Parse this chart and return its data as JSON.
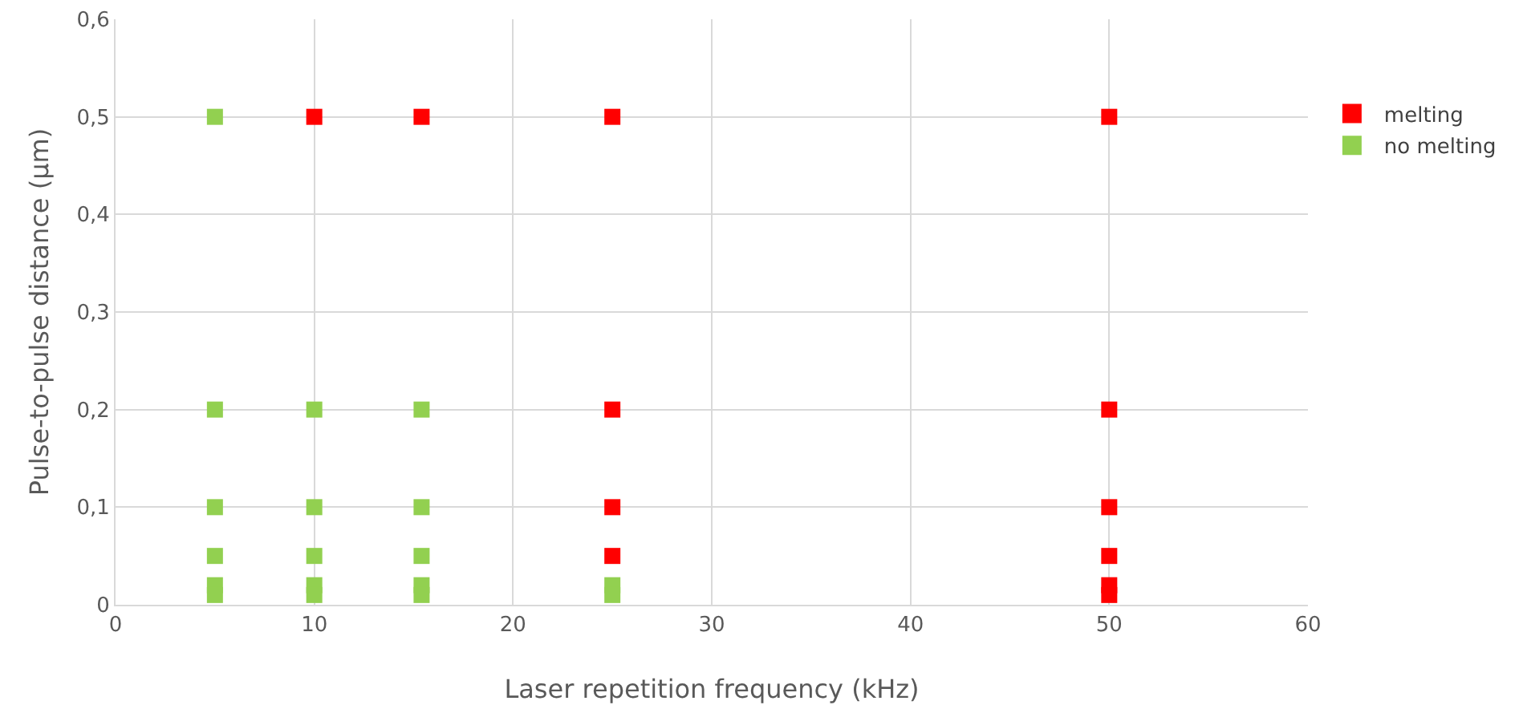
{
  "chart_data": {
    "type": "scatter",
    "xlabel": "Laser repetition frequency (kHz)",
    "ylabel": "Pulse-to-pulse distance (µm)",
    "series": [
      {
        "name": "melting",
        "color": "#ff0000",
        "x": [
          10,
          15.4,
          25,
          25,
          25,
          25,
          50,
          50,
          50,
          50,
          50,
          50
        ],
        "values": [
          0.5,
          0.5,
          0.5,
          0.2,
          0.1,
          0.05,
          0.5,
          0.2,
          0.1,
          0.05,
          0.02,
          0.01
        ]
      },
      {
        "name": "no melting",
        "color": "#92d050",
        "x": [
          5,
          5,
          5,
          5,
          5,
          5,
          10,
          10,
          10,
          10,
          10,
          15.4,
          15.4,
          15.4,
          15.4,
          15.4,
          25,
          25
        ],
        "values": [
          0.5,
          0.2,
          0.1,
          0.05,
          0.02,
          0.01,
          0.2,
          0.1,
          0.05,
          0.02,
          0.01,
          0.2,
          0.1,
          0.05,
          0.02,
          0.01,
          0.02,
          0.01
        ]
      }
    ],
    "xlim": [
      0,
      60
    ],
    "xticks": [
      0,
      10,
      20,
      30,
      40,
      50,
      60
    ],
    "ylim": [
      0,
      0.6
    ],
    "yticks": [
      0,
      {
        "value": 0.1,
        "label": "0,1"
      },
      {
        "value": 0.2,
        "label": "0,2"
      },
      {
        "value": 0.3,
        "label": "0,3"
      },
      {
        "value": 0.4,
        "label": "0,4"
      },
      {
        "value": 0.5,
        "label": "0,5"
      },
      {
        "value": 0.6,
        "label": "0,6"
      }
    ],
    "grid": true,
    "legend": "right",
    "marker": "square"
  }
}
